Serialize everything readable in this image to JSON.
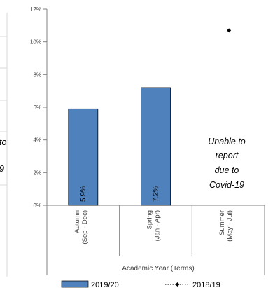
{
  "chart_data": {
    "type": "bar",
    "categories": [
      [
        "Autumn",
        "(Sep - Dec)"
      ],
      [
        "Spring",
        "(Jan - Apr)"
      ],
      [
        "Summer",
        "(May - Jul)"
      ]
    ],
    "series": [
      {
        "name": "2019/20",
        "type": "bar",
        "values": [
          5.9,
          7.2,
          null
        ],
        "data_labels": [
          "5.9%",
          "7.2%",
          ""
        ]
      },
      {
        "name": "2018/19",
        "type": "line",
        "values": [
          null,
          null,
          10.7
        ]
      }
    ],
    "yticks": [
      "0%",
      "2%",
      "4%",
      "6%",
      "8%",
      "10%",
      "12%"
    ],
    "ylim": [
      0,
      12
    ],
    "xlabel": "Academic Year (Terms)",
    "ylabel": "",
    "annotation": [
      "Unable to",
      "report",
      "due to",
      "Covid-19"
    ],
    "left_fragments": [
      "to",
      "9"
    ],
    "legend_position": "bottom",
    "grid": false,
    "colors": {
      "bar_fill": "#4f81bd",
      "bar_edge": "#000000",
      "marker": "#000000",
      "axis": "#808080"
    }
  }
}
